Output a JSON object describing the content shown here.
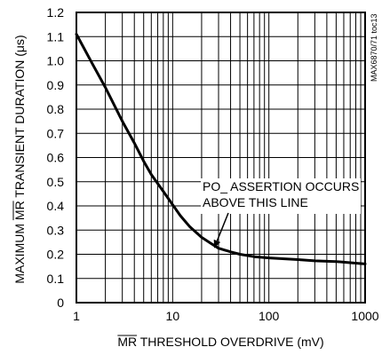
{
  "chart_data": {
    "type": "line",
    "title": "",
    "xlabel_bar": "MR",
    "xlabel_rest": " THRESHOLD OVERDRIVE (mV)",
    "ylabel_pre": "MAXIMUM ",
    "ylabel_bar": "MR",
    "ylabel_post": " TRANSIENT DURATION (μs)",
    "x_scale": "log",
    "xlim": [
      1,
      1000
    ],
    "ylim": [
      0,
      1.2
    ],
    "x_ticks": [
      {
        "value": 1,
        "label": "1"
      },
      {
        "value": 10,
        "label": "10"
      },
      {
        "value": 100,
        "label": "100"
      },
      {
        "value": 1000,
        "label": "1000"
      }
    ],
    "y_ticks": [
      {
        "value": 0,
        "label": "0"
      },
      {
        "value": 0.1,
        "label": "0.1"
      },
      {
        "value": 0.2,
        "label": "0.2"
      },
      {
        "value": 0.3,
        "label": "0.3"
      },
      {
        "value": 0.4,
        "label": "0.4"
      },
      {
        "value": 0.5,
        "label": "0.5"
      },
      {
        "value": 0.6,
        "label": "0.6"
      },
      {
        "value": 0.7,
        "label": "0.7"
      },
      {
        "value": 0.8,
        "label": "0.8"
      },
      {
        "value": 0.9,
        "label": "0.9"
      },
      {
        "value": 1.0,
        "label": "1.0"
      },
      {
        "value": 1.1,
        "label": "1.1"
      },
      {
        "value": 1.2,
        "label": "1.2"
      }
    ],
    "grid": true,
    "series": [
      {
        "x": [
          1,
          1.5,
          2,
          3,
          4,
          5,
          6,
          8,
          10,
          12,
          15,
          20,
          25,
          30,
          40,
          50,
          70,
          100,
          200,
          300,
          500,
          700,
          1000
        ],
        "y": [
          1.11,
          0.98,
          0.89,
          0.75,
          0.66,
          0.585,
          0.53,
          0.46,
          0.405,
          0.36,
          0.315,
          0.27,
          0.245,
          0.225,
          0.21,
          0.2,
          0.19,
          0.185,
          0.178,
          0.173,
          0.17,
          0.165,
          0.16
        ]
      }
    ],
    "annotation": {
      "lines": [
        "PO_ ASSERTION OCCURS",
        "ABOVE THIS LINE"
      ],
      "arrow_target": {
        "x": 27,
        "y": 0.225
      }
    },
    "figure_id": "MAX6870/71 toc13"
  }
}
